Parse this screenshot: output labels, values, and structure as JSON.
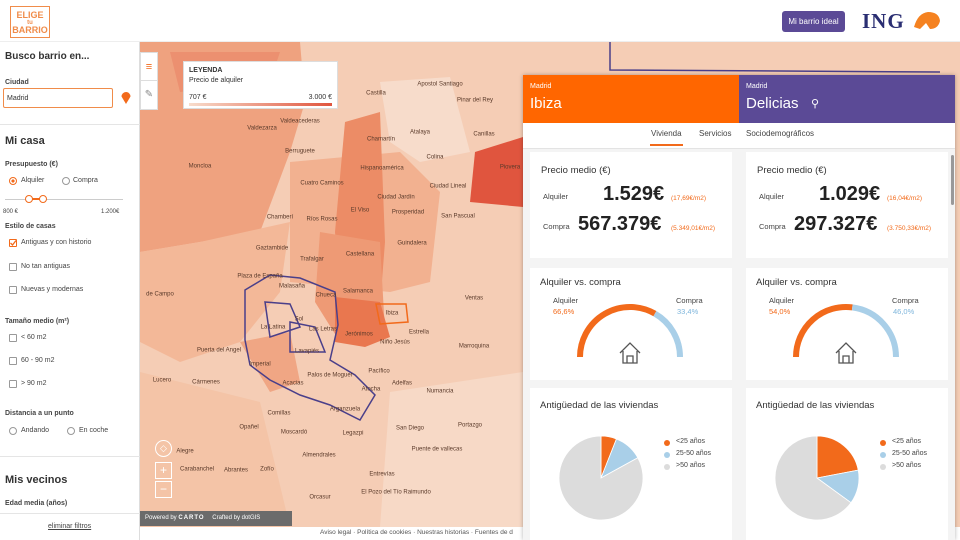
{
  "header": {
    "logo_top": "ELIGE",
    "logo_mid": "tu",
    "logo_bottom": "BARRIO",
    "button": "Mi barrio ideal",
    "brand": "ING"
  },
  "sidebar": {
    "title": "Busco barrio en...",
    "city_label": "Ciudad",
    "city": "Madrid",
    "section_home": "Mi casa",
    "budget_label": "Presupuesto (€)",
    "budget_rent": "Alquiler",
    "budget_buy": "Compra",
    "budget_min": "800 €",
    "budget_max": "1.200€",
    "style_label": "Estilo de casas",
    "styles": [
      "Antiguas y con historio",
      "No tan antiguas",
      "Nuevas y modernas"
    ],
    "size_label": "Tamaño medio (m²)",
    "sizes": [
      "< 60 m2",
      "60 - 90 m2",
      "> 90 m2"
    ],
    "distance_label": "Distancia a un punto",
    "distance_walk": "Andando",
    "distance_car": "En coche",
    "section_neighbours": "Mis vecinos",
    "age_label": "Edad media (años)",
    "reset": "eliminar filtros"
  },
  "legend": {
    "title": "LEYENDA",
    "subtitle": "Precio de alquiler",
    "min": "707 €",
    "max": "3.000 €"
  },
  "map": {
    "labels": [
      "Apostol Santiago",
      "Castilla",
      "Pinar del Rey",
      "Valdeacederas",
      "Valdezarza",
      "Berruguete",
      "Chamartín",
      "Atalaya",
      "Canillas",
      "Hispanoamérica",
      "Colina",
      "Piovera",
      "Moncloa",
      "Cuatro Caminos",
      "Ciudad Jardín",
      "Ciudad Lineal",
      "Chamberí",
      "Ríos Rosas",
      "El Viso",
      "Prosperidad",
      "San Pascual",
      "Gaztambide",
      "Trafalgar",
      "Castellana",
      "Guindalera",
      "Plaza de España",
      "Malasaña",
      "Chueca",
      "Salamanca",
      "Ventas",
      "Ibiza",
      "Sol",
      "Las Letras",
      "Jerónimos",
      "Estrella",
      "Niño Jesús",
      "La Latina",
      "Lavapiés",
      "Marroquina",
      "Puerta del Angel",
      "Imperial",
      "Palos de Moguer",
      "Pacífico",
      "Lucero",
      "Cármenes",
      "Acacias",
      "Atocha",
      "Adelfas",
      "Numancia",
      "Comillas",
      "Arganzuela",
      "Opañel",
      "Moscardó",
      "Legazpi",
      "San Diego",
      "Portazgo",
      "Almendrales",
      "Puente de vallecas",
      "Alegre",
      "Carabanchel",
      "Abrantes",
      "Zofío",
      "Orcasur",
      "Entrevías",
      "El Pozo del Tío Raimundo",
      "de Campo"
    ],
    "powered": "Powered by",
    "carto": "CARTO",
    "crafted": "Crafted by dotGIS"
  },
  "footer_links": [
    "Aviso legal",
    "Política de cookies",
    "Nuestras historias",
    "Fuentes de d"
  ],
  "panel": {
    "tabs": [
      "Vivienda",
      "Servicios",
      "Sociodemográficos"
    ],
    "districts": [
      {
        "city": "Madrid",
        "name": "Ibiza",
        "color": "#ff6600",
        "price": {
          "title": "Precio medio (€)",
          "rent_label": "Alquiler",
          "rent": "1.529€",
          "rent_m2": "(17,69€/m2)",
          "buy_label": "Compra",
          "buy": "567.379€",
          "buy_m2": "(5.349,01€/m2)"
        },
        "ratio": {
          "title": "Alquiler vs. compra",
          "rent_label": "Alquiler",
          "rent_share": 66.6,
          "rent_text": "66,6%",
          "buy_label": "Compra",
          "buy_share": 33.4,
          "buy_text": "33,4%"
        },
        "age": {
          "title": "Antigüedad de las viviendas",
          "legend": [
            "<25 años",
            "25-50 años",
            ">50 años"
          ],
          "values": [
            6,
            11,
            83
          ],
          "colors": [
            "#f26a1b",
            "#a9cfe8",
            "#dcdcdc"
          ]
        }
      },
      {
        "city": "Madrid",
        "name": "Delicias",
        "color": "#5b4a96",
        "price": {
          "title": "Precio medio (€)",
          "rent_label": "Alquiler",
          "rent": "1.029€",
          "rent_m2": "(16,04€/m2)",
          "buy_label": "Compra",
          "buy": "297.327€",
          "buy_m2": "(3.750,33€/m2)"
        },
        "ratio": {
          "title": "Alquiler vs. compra",
          "rent_label": "Alquiler",
          "rent_share": 54.0,
          "rent_text": "54,0%",
          "buy_label": "Compra",
          "buy_share": 46.0,
          "buy_text": "46,0%"
        },
        "age": {
          "title": "Antigüedad de las viviendas",
          "legend": [
            "<25 años",
            "25-50 años",
            ">50 años"
          ],
          "values": [
            22,
            13,
            65
          ],
          "colors": [
            "#f26a1b",
            "#a9cfe8",
            "#dcdcdc"
          ]
        }
      }
    ]
  }
}
